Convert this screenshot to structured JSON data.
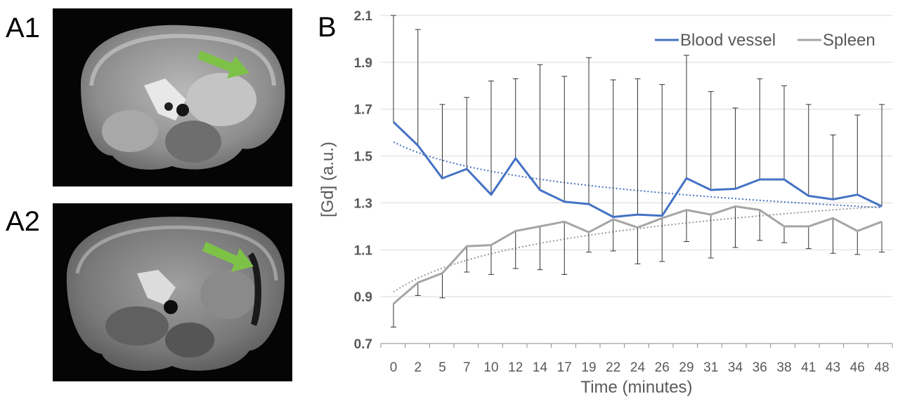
{
  "panels": {
    "a1_label": "A1",
    "a2_label": "A2",
    "b_label": "B"
  },
  "images": {
    "a1": {
      "description_icon": "mri-axial-slice-icon",
      "arrow_color": "#7dc247"
    },
    "a2": {
      "description_icon": "mri-axial-slice-icon",
      "arrow_color": "#7dc247"
    }
  },
  "chart_data": {
    "type": "line",
    "xlabel": "Time (minutes)",
    "ylabel": "[Gd] (a.u.)",
    "categories": [
      "0",
      "2",
      "5",
      "7",
      "10",
      "12",
      "14",
      "17",
      "19",
      "22",
      "24",
      "26",
      "29",
      "31",
      "34",
      "36",
      "38",
      "41",
      "43",
      "46",
      "48"
    ],
    "ylim": [
      0.7,
      2.1
    ],
    "yticks": [
      "0.7",
      "0.9",
      "1.1",
      "1.3",
      "1.5",
      "1.7",
      "1.9",
      "2.1"
    ],
    "grid": "horizontal",
    "legend_position": "top-right",
    "series": [
      {
        "name": "Blood vessel",
        "color": "#4472c4",
        "values": [
          1.645,
          1.545,
          1.405,
          1.445,
          1.335,
          1.49,
          1.355,
          1.305,
          1.295,
          1.24,
          1.25,
          1.245,
          1.405,
          1.355,
          1.36,
          1.4,
          1.4,
          1.33,
          1.315,
          1.335,
          1.285
        ],
        "error_top": [
          2.1,
          2.04,
          1.72,
          1.75,
          1.82,
          1.83,
          1.89,
          1.84,
          1.92,
          1.825,
          1.83,
          1.805,
          1.93,
          1.775,
          1.705,
          1.83,
          1.8,
          1.72,
          1.59,
          1.675,
          1.72
        ],
        "trendline": "logarithmic",
        "trend_start": 1.56,
        "trend_end": 1.28
      },
      {
        "name": "Spleen",
        "color": "#a5a5a5",
        "values": [
          0.87,
          0.96,
          1.0,
          1.115,
          1.12,
          1.18,
          1.2,
          1.22,
          1.175,
          1.23,
          1.195,
          1.235,
          1.27,
          1.25,
          1.285,
          1.27,
          1.2,
          1.2,
          1.235,
          1.18,
          1.22
        ],
        "error_bottom": [
          0.77,
          0.905,
          0.895,
          1.005,
          0.995,
          1.02,
          1.015,
          0.995,
          1.09,
          1.095,
          1.04,
          1.05,
          1.135,
          1.065,
          1.11,
          1.14,
          1.13,
          1.105,
          1.085,
          1.08,
          1.09
        ],
        "trendline": "logarithmic",
        "trend_start": 0.92,
        "trend_end": 1.285
      }
    ]
  }
}
